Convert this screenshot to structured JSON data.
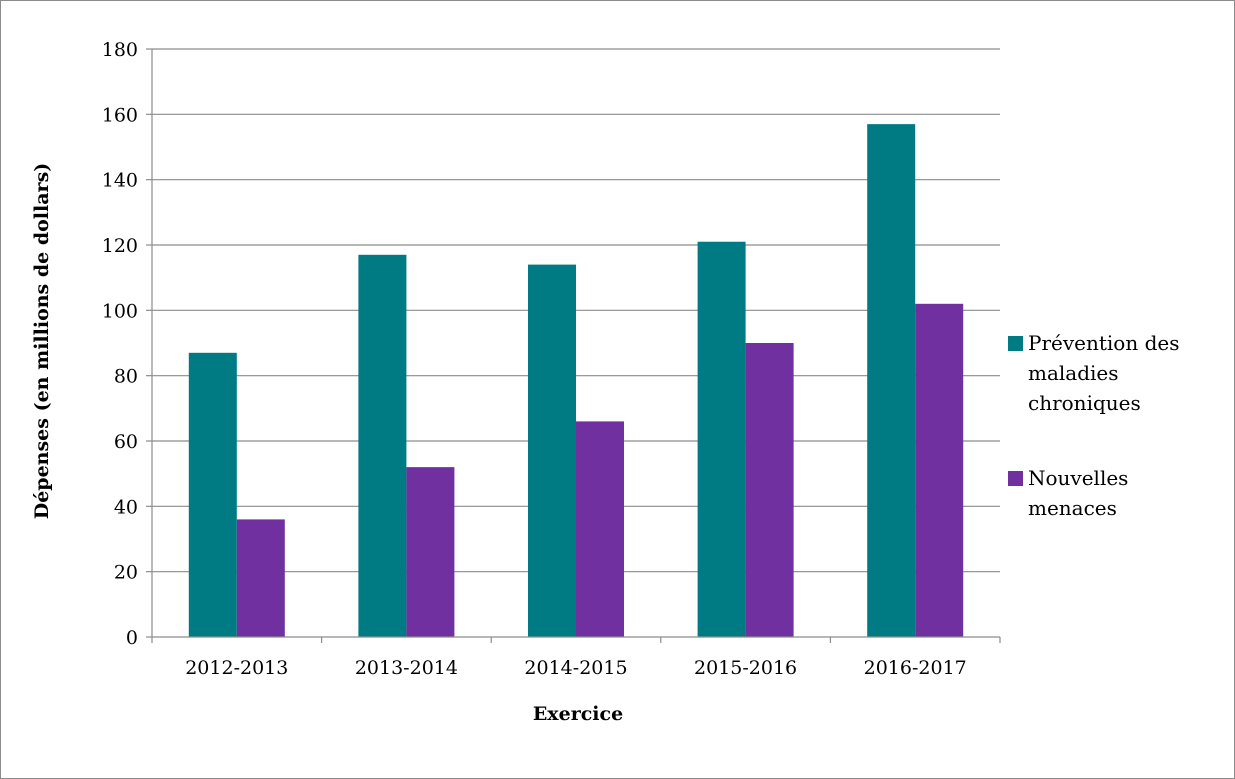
{
  "chart_data": {
    "type": "bar",
    "title": "",
    "xlabel": "Exercice",
    "ylabel": "Dépenses (en millions de dollars)",
    "ylim": [
      0,
      180
    ],
    "ytick_step": 20,
    "grid": true,
    "legend_position": "right",
    "categories": [
      "2012-2013",
      "2013-2014",
      "2014-2015",
      "2015-2016",
      "2016-2017"
    ],
    "series": [
      {
        "name": "Prévention des maladies chroniques",
        "legend_lines": [
          "Prévention des",
          "maladies",
          "chroniques"
        ],
        "color": "#007b84",
        "values": [
          87,
          117,
          114,
          121,
          157
        ]
      },
      {
        "name": "Nouvelles menaces",
        "legend_lines": [
          "Nouvelles",
          "menaces"
        ],
        "color": "#7030a0",
        "values": [
          36,
          52,
          66,
          90,
          102
        ]
      }
    ]
  }
}
